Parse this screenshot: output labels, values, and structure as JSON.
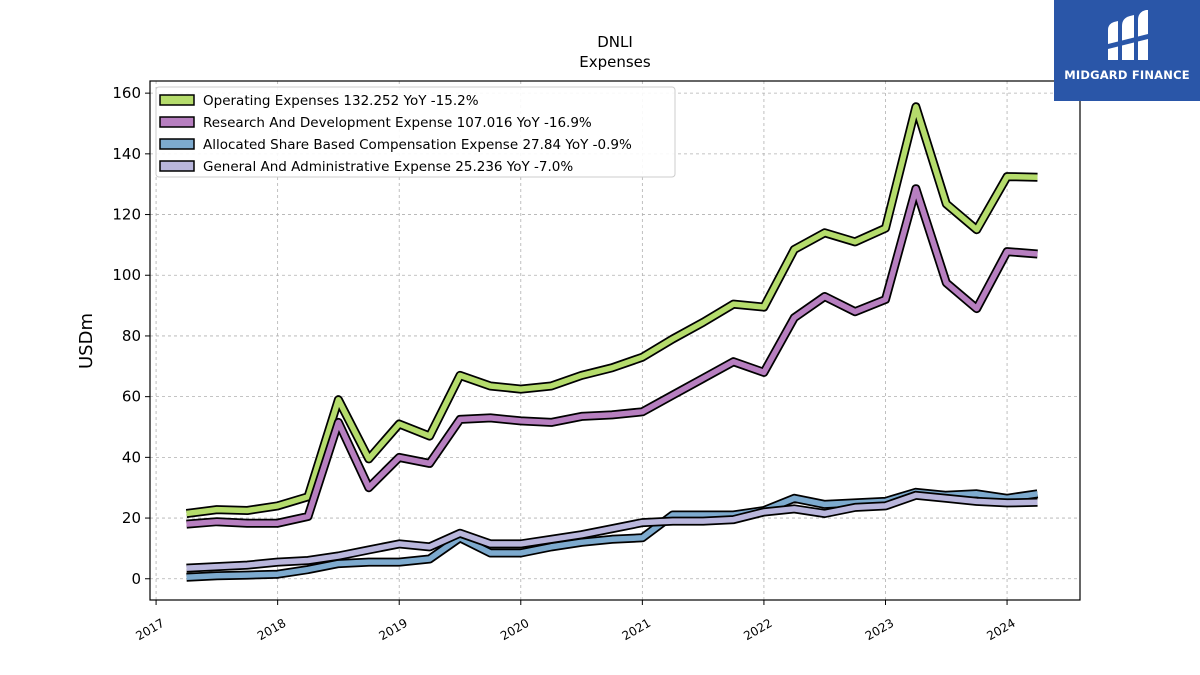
{
  "chart_data": {
    "type": "line",
    "title": "DNLI",
    "subtitle": "Expenses",
    "ylabel": "USDm",
    "xlabel": "",
    "ylim": [
      -7,
      164
    ],
    "xlim": [
      2016.95,
      2024.6
    ],
    "yticks": [
      0,
      20,
      40,
      60,
      80,
      100,
      120,
      140,
      160
    ],
    "xticks": [
      "2017",
      "2018",
      "2019",
      "2020",
      "2021",
      "2022",
      "2023",
      "2024"
    ],
    "grid": true,
    "legend_position": "top-left",
    "x": [
      2017.25,
      2017.5,
      2017.75,
      2018.0,
      2018.25,
      2018.5,
      2018.75,
      2019.0,
      2019.25,
      2019.5,
      2019.75,
      2020.0,
      2020.25,
      2020.5,
      2020.75,
      2021.0,
      2021.25,
      2021.5,
      2021.75,
      2022.0,
      2022.25,
      2022.5,
      2022.75,
      2023.0,
      2023.25,
      2023.5,
      2023.75,
      2024.0,
      2024.25
    ],
    "series": [
      {
        "name": "Operating Expenses  132.252 YoY -15.2%",
        "color": "#b5dc6c",
        "values": [
          21.5,
          22.8,
          22.5,
          24,
          27,
          59,
          39.5,
          51,
          47,
          67,
          63.5,
          62.5,
          63.5,
          67,
          69.5,
          73,
          79,
          84.5,
          90.5,
          89.5,
          108.5,
          114,
          111,
          115.5,
          155.5,
          123.5,
          115,
          132.5,
          132.3
        ]
      },
      {
        "name": "Research And Development Expense  107.016 YoY -16.9%",
        "color": "#b77fc0",
        "values": [
          18,
          18.8,
          18.3,
          18.3,
          20.5,
          51.5,
          30,
          40,
          38,
          52.5,
          53,
          52,
          51.5,
          53.5,
          54,
          55,
          60.5,
          66,
          71.5,
          68,
          86,
          93,
          88,
          92,
          128.5,
          97.5,
          89,
          107.8,
          107
        ]
      },
      {
        "name": "Allocated Share Based Compensation Expense  27.84 YoY -0.9%",
        "color": "#7daace",
        "values": [
          0.5,
          1,
          1.2,
          1.5,
          3,
          5,
          5.5,
          5.5,
          6.5,
          13.5,
          8.5,
          8.5,
          10.5,
          12,
          13,
          13.5,
          21,
          21,
          21,
          22.5,
          26.5,
          24.5,
          25,
          25.5,
          28.5,
          27.5,
          28,
          26.5,
          28
        ]
      },
      {
        "name": "General And Administrative Expense  25.236 YoY -7.0%",
        "color": "#b9b6dc",
        "values": [
          3.5,
          4,
          4.5,
          5.5,
          6,
          7.5,
          9.5,
          11.5,
          10.5,
          15,
          11.5,
          11.5,
          13,
          14.5,
          16.5,
          18.5,
          19,
          19,
          19.5,
          22,
          23,
          21.5,
          23.5,
          24,
          27.5,
          26.5,
          25.5,
          25,
          25.2
        ]
      }
    ]
  },
  "logo": {
    "text": "MIDGARD FINANCE"
  }
}
